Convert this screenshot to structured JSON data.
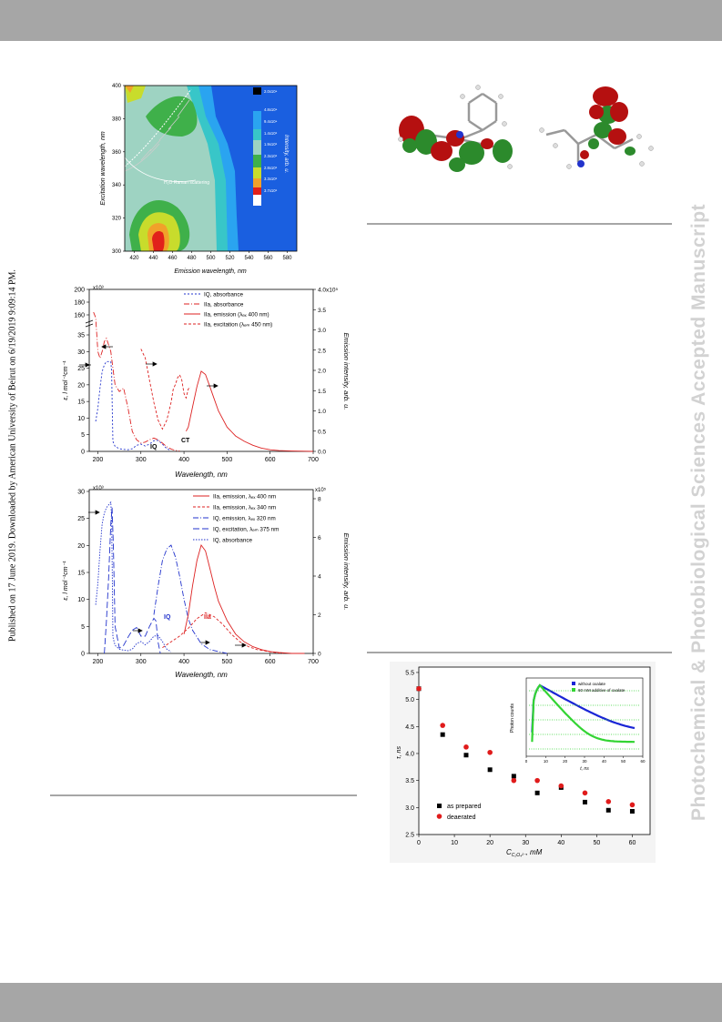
{
  "sidebar_left": {
    "text": "Published on 17 June 2019. Downloaded by American University of Beirut on 6/19/2019 9:09:14 PM."
  },
  "watermark": {
    "text": "Photochemical & Photobiological Sciences Accepted Manuscript"
  },
  "figures": [
    {
      "id": "contour_map",
      "chart_data": {
        "type": "heatmap",
        "xlabel": "Emission wavelength, nm",
        "ylabel": "Excitation wavelength, nm",
        "xticks": [
          "420",
          "440",
          "460",
          "480",
          "500",
          "520",
          "540",
          "560",
          "580"
        ],
        "yticks": [
          "300",
          "320",
          "340",
          "360",
          "380",
          "400"
        ],
        "xlim": [
          410,
          590
        ],
        "ylim": [
          300,
          400
        ],
        "annotation": "H₂O Raman scattering",
        "colorbar": {
          "label": "Intensity, arb. u.",
          "levels": [
            "2.0x10⁴",
            "4.8x10⁴",
            "9.4x10⁴",
            "1.4x10⁵",
            "1.9x10⁵",
            "2.3x10⁵",
            "2.8x10⁵",
            "3.3x10⁵",
            "3.7x10⁵"
          ],
          "colors": [
            "#000000",
            "#1a5fe0",
            "#2aa4f0",
            "#38c6c8",
            "#9ed3c2",
            "#3fb04a",
            "#c8dc2c",
            "#f1a12a",
            "#e1201b",
            "#ffffff"
          ]
        }
      }
    },
    {
      "id": "absorption_emission_top",
      "chart_data": {
        "type": "line",
        "xlabel": "Wavelength, nm",
        "ylabel_left": "ε, l mol⁻¹cm⁻¹",
        "ylabel_right": "Emission intensity, arb. u.",
        "left_multiplier": "x10³",
        "right_multiplier": "",
        "xticks": [
          "200",
          "300",
          "400",
          "500",
          "600",
          "700"
        ],
        "xlim": [
          180,
          700
        ],
        "left_ticks_lower": [
          "0",
          "5",
          "10",
          "15",
          "20",
          "25",
          "30",
          "35"
        ],
        "left_ticks_upper": [
          "160",
          "180",
          "200"
        ],
        "right_ticks": [
          "0.0",
          "0.5",
          "1.0",
          "1.5",
          "2.0",
          "2.5",
          "3.0",
          "3.5",
          "4.0x10⁵"
        ],
        "labels_in_plot": [
          "IQ",
          "CT"
        ],
        "legend": [
          {
            "label": "IQ, absorbance",
            "color": "#2233cc",
            "dash": "2,2"
          },
          {
            "label": "IIa, absorbance",
            "color": "#d22",
            "dash": "6,2,1,2"
          },
          {
            "label": "IIa, emission (λₑₓ 400 nm)",
            "color": "#d22",
            "dash": ""
          },
          {
            "label": "IIa, excitation (λₑₘ 450 nm)",
            "color": "#d22",
            "dash": "3,2"
          }
        ],
        "series": [
          {
            "name": "IQ, absorbance",
            "x": [
              195,
              200,
              205,
              210,
              215,
              220,
              225,
              230,
              232,
              234,
              235,
              240,
              250,
              260,
              270,
              280,
              290,
              300,
              310,
              320,
              330,
              340,
              350,
              360,
              370
            ],
            "y": [
              9,
              13,
              19,
              24,
              26,
              27,
              27,
              27,
              24,
              10,
              3,
              1.5,
              0.8,
              0.6,
              0.5,
              0.8,
              1.8,
              2.2,
              1.6,
              2.2,
              3.2,
              3.3,
              2.2,
              0.8,
              0.3
            ]
          },
          {
            "name": "IIa, absorbance",
            "x": [
              190,
              195,
              200,
              205,
              210,
              215,
              220,
              225,
              230,
              235,
              240,
              250,
              260,
              270,
              280,
              290,
              300,
              310,
              320,
              330,
              340,
              350,
              360,
              370,
              380,
              390
            ],
            "y": [
              40,
              37,
              30,
              28,
              30,
              33,
              34,
              32,
              30,
              25,
              20,
              18,
              19,
              13,
              6,
              3.5,
              2.5,
              2.8,
              3.5,
              4,
              3.5,
              2.5,
              1.4,
              0.7,
              0.3,
              0.1
            ]
          },
          {
            "name": "IIa, emission (λₑₓ 400 nm)",
            "x": [
              405,
              410,
              420,
              430,
              440,
              450,
              460,
              470,
              480,
              500,
              520,
              540,
              560,
              580,
              600,
              620,
              650,
              680,
              700
            ],
            "y": [
              5,
              6,
              11,
              16,
              19.8,
              19,
              16,
              13,
              10,
              6,
              3.8,
              2.5,
              1.5,
              0.8,
              0.4,
              0.2,
              0.1,
              0.05,
              0
            ]
          },
          {
            "name": "IIa, excitation (λₑₘ 450 nm)",
            "x": [
              300,
              305,
              310,
              320,
              330,
              340,
              350,
              360,
              370,
              375,
              380,
              385,
              390,
              395,
              400,
              405,
              410,
              415
            ],
            "y": [
              23,
              22,
              21,
              16,
              11,
              7,
              5,
              7,
              11,
              14,
              15,
              16.5,
              17.2,
              16,
              13,
              12,
              14,
              14.5
            ]
          }
        ]
      }
    },
    {
      "id": "absorption_emission_bottom",
      "chart_data": {
        "type": "line",
        "xlabel": "Wavelength, nm",
        "ylabel_left": "ε, l mol⁻¹cm⁻¹",
        "ylabel_right": "Emission intensity, arb. u.",
        "left_multiplier": "x10³",
        "right_multiplier": "x10⁵",
        "xticks": [
          "200",
          "300",
          "400",
          "500",
          "600",
          "700"
        ],
        "xlim": [
          180,
          700
        ],
        "left_ticks": [
          "0",
          "5",
          "10",
          "15",
          "20",
          "25",
          "30"
        ],
        "right_ticks": [
          "0",
          "2",
          "4",
          "6",
          "8"
        ],
        "labels_in_plot": [
          "IQ",
          "IIa"
        ],
        "legend": [
          {
            "label": "IIa, emission, λₑₓ 400 nm",
            "color": "#d22",
            "dash": ""
          },
          {
            "label": "IIa, emission, λₑₓ 340 nm",
            "color": "#d22",
            "dash": "3,2"
          },
          {
            "label": "IQ, emission, λₑₓ 320 nm",
            "color": "#2233cc",
            "dash": "6,2,1,2"
          },
          {
            "label": "IQ, excitation, λₑₘ 375 nm",
            "color": "#2233cc",
            "dash": "7,3"
          },
          {
            "label": "IQ, absorbance",
            "color": "#2233cc",
            "dash": "1.5,1.5"
          }
        ],
        "series": [
          {
            "name": "IQ, absorbance",
            "x": [
              195,
              200,
              205,
              210,
              215,
              220,
              225,
              230,
              232,
              234,
              235,
              240,
              250,
              260,
              270,
              280,
              290,
              300,
              310,
              320,
              330,
              340,
              350,
              360,
              370
            ],
            "y": [
              9,
              13,
              19,
              24,
              26,
              27,
              27.5,
              28,
              25,
              12,
              3,
              1.5,
              0.8,
              0.6,
              0.5,
              0.8,
              1.8,
              2.2,
              1.6,
              2.2,
              3.2,
              3.3,
              2.2,
              0.8,
              0.3
            ]
          },
          {
            "name": "IQ, excitation, λₑₘ 375 nm",
            "x": [
              215,
              220,
              225,
              230,
              233,
              236,
              240,
              250,
              260,
              270,
              280,
              290,
              300,
              310,
              320,
              330,
              335,
              340,
              345
            ],
            "y": [
              0,
              6,
              14,
              24,
              27,
              20,
              5,
              1,
              1.5,
              3,
              4.3,
              4.8,
              3.2,
              3.2,
              5,
              6.5,
              6,
              2,
              0
            ]
          },
          {
            "name": "IQ, emission, λₑₓ 320 nm",
            "x": [
              330,
              340,
              350,
              360,
              370,
              380,
              390,
              400,
              410,
              420,
              440,
              460,
              480,
              500
            ],
            "y": [
              2,
              3.5,
              4.8,
              5.4,
              5.6,
              5,
              4,
              2.8,
              1.8,
              1.2,
              0.5,
              0.2,
              0.1,
              0
            ]
          },
          {
            "name": "IIa, emission, λₑₓ 400 nm",
            "x": [
              400,
              410,
              420,
              430,
              440,
              450,
              460,
              470,
              480,
              500,
              520,
              540,
              560,
              580,
              600,
              620,
              650,
              680
            ],
            "y": [
              1,
              2,
              3.5,
              4.8,
              5.6,
              5.3,
              4.4,
              3.5,
              2.7,
              1.7,
              1,
              0.6,
              0.35,
              0.2,
              0.1,
              0.05,
              0,
              0
            ]
          },
          {
            "name": "IIa, emission, λₑₓ 340 nm",
            "x": [
              350,
              370,
              390,
              410,
              430,
              450,
              470,
              490,
              510,
              530,
              550,
              570,
              600,
              630
            ],
            "y": [
              0.3,
              0.6,
              0.9,
              1.3,
              1.8,
              2.1,
              1.9,
              1.5,
              1,
              0.6,
              0.35,
              0.2,
              0.08,
              0
            ]
          }
        ]
      }
    },
    {
      "id": "lifetime_vs_oxalate",
      "chart_data": {
        "type": "scatter",
        "xlabel": "C",
        "xlabel_sub": "C₂O₄²⁻",
        "xlabel_unit": ", mM",
        "ylabel": "τ, ns",
        "xticks": [
          "0",
          "10",
          "20",
          "30",
          "40",
          "50",
          "60"
        ],
        "yticks": [
          "2.5",
          "3.0",
          "3.5",
          "4.0",
          "4.5",
          "5.0",
          "5.5"
        ],
        "xlim": [
          0,
          65
        ],
        "ylim": [
          2.5,
          5.6
        ],
        "legend": [
          {
            "label": "as prepared",
            "color": "#000000"
          },
          {
            "label": "deaerated",
            "color": "#e01b1b"
          }
        ],
        "series": [
          {
            "name": "as prepared",
            "x": [
              0,
              6.7,
              13.3,
              20,
              26.7,
              33.3,
              40,
              46.7,
              53.3,
              60
            ],
            "y": [
              5.2,
              4.35,
              3.97,
              3.7,
              3.58,
              3.27,
              3.37,
              3.1,
              2.95,
              2.93
            ]
          },
          {
            "name": "deaerated",
            "x": [
              0,
              6.7,
              13.3,
              20,
              26.7,
              33.3,
              40,
              46.7,
              53.3,
              60
            ],
            "y": [
              5.2,
              4.52,
              4.12,
              4.02,
              3.5,
              3.5,
              3.4,
              3.27,
              3.11,
              3.05
            ]
          }
        ],
        "inset": {
          "xlabel": "t, ns",
          "ylabel": "Photon counts",
          "xticks": [
            "0",
            "10",
            "20",
            "30",
            "40",
            "50",
            "60"
          ],
          "legend": [
            {
              "label": "without oxalate",
              "color": "#1a25d6"
            },
            {
              "label": "60 mM additive of oxalate",
              "color": "#33d433"
            }
          ]
        }
      }
    }
  ]
}
